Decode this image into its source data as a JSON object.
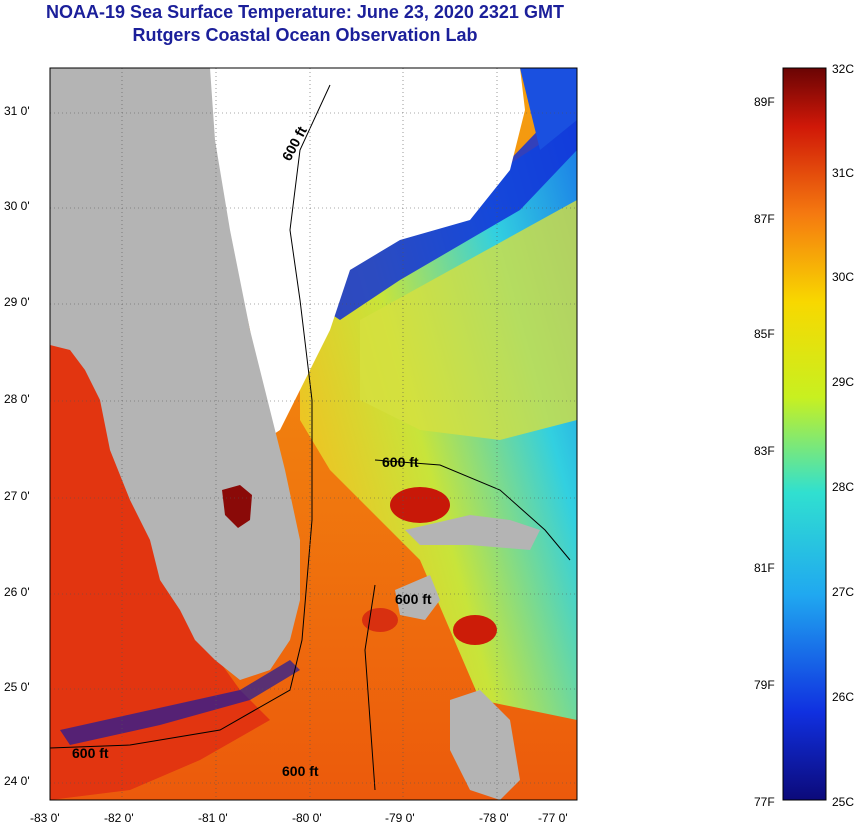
{
  "header": {
    "title": "NOAA-19 Sea Surface Temperature:  June 23, 2020 2321 GMT",
    "subtitle": "Rutgers Coastal Ocean Observation Lab"
  },
  "map": {
    "lat_ticks": [
      "31 0'",
      "30 0'",
      "29 0'",
      "28 0'",
      "27 0'",
      "26 0'",
      "25 0'",
      "24 0'"
    ],
    "lon_ticks": [
      "-83 0'",
      "-82 0'",
      "-81 0'",
      "-80 0'",
      "-79 0'",
      "-78 0'",
      "-77 0'"
    ],
    "contour_labels": [
      "600 ft",
      "600 ft",
      "600 ft",
      "600 ft",
      "600 ft"
    ],
    "colors": {
      "land": "#b4b4b4",
      "cloud": "#ffffff",
      "warm": "#e63a10",
      "mid": "#f5b000",
      "cool": "#2fc8e0",
      "cold": "#0a1a9a"
    }
  },
  "colorbar": {
    "celsius": [
      "32C",
      "31C",
      "30C",
      "29C",
      "28C",
      "27C",
      "26C",
      "25C"
    ],
    "fahrenheit": [
      "89F",
      "87F",
      "85F",
      "83F",
      "81F",
      "79F",
      "77F"
    ],
    "range_c": [
      25,
      32
    ]
  }
}
